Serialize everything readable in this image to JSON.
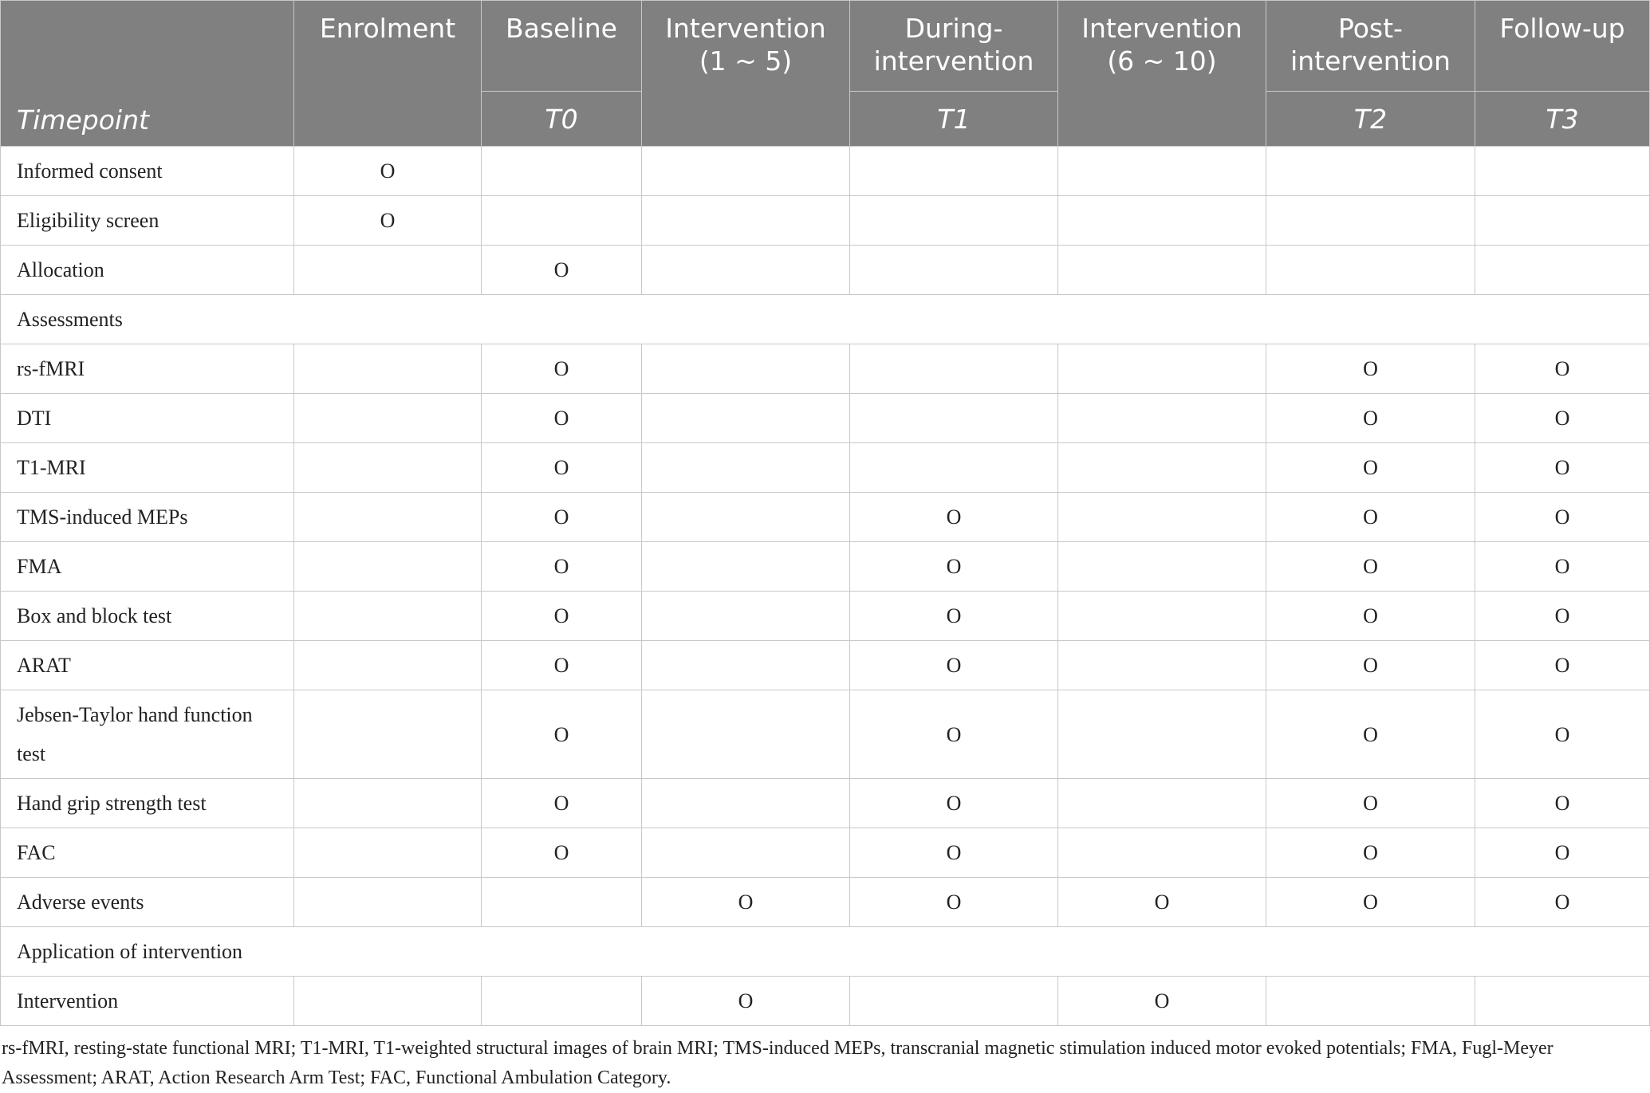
{
  "header": {
    "corner": "Timepoint",
    "columns": [
      {
        "label": "Enrolment"
      },
      {
        "label": "Baseline",
        "sub": "T0"
      },
      {
        "label": "Intervention\n(1 ~ 5)"
      },
      {
        "label": "During-\nintervention",
        "sub": "T1"
      },
      {
        "label": "Intervention\n(6 ~ 10)"
      },
      {
        "label": "Post-\nintervention",
        "sub": "T2"
      },
      {
        "label": "Follow-up",
        "sub": "T3"
      }
    ]
  },
  "rows": [
    {
      "label": "Informed consent",
      "cells": [
        "O",
        null,
        null,
        null,
        null,
        null,
        null
      ]
    },
    {
      "label": "Eligibility screen",
      "cells": [
        "O",
        null,
        null,
        null,
        null,
        null,
        null
      ]
    },
    {
      "label": "Allocation",
      "cells": [
        null,
        "O",
        null,
        null,
        null,
        null,
        null
      ]
    },
    {
      "section": "Assessments"
    },
    {
      "label": "rs-fMRI",
      "cells": [
        null,
        "O",
        null,
        null,
        null,
        "O",
        "O"
      ]
    },
    {
      "label": "DTI",
      "cells": [
        null,
        "O",
        null,
        null,
        null,
        "O",
        "O"
      ]
    },
    {
      "label": "T1-MRI",
      "cells": [
        null,
        "O",
        null,
        null,
        null,
        "O",
        "O"
      ]
    },
    {
      "label": "TMS-induced MEPs",
      "cells": [
        null,
        "O",
        null,
        "O",
        null,
        "O",
        "O"
      ]
    },
    {
      "label": "FMA",
      "cells": [
        null,
        "O",
        null,
        "O",
        null,
        "O",
        "O"
      ]
    },
    {
      "label": "Box and block test",
      "cells": [
        null,
        "O",
        null,
        "O",
        null,
        "O",
        "O"
      ]
    },
    {
      "label": "ARAT",
      "cells": [
        null,
        "O",
        null,
        "O",
        null,
        "O",
        "O"
      ]
    },
    {
      "label": "Jebsen-Taylor hand function test",
      "cells": [
        null,
        "O",
        null,
        "O",
        null,
        "O",
        "O"
      ]
    },
    {
      "label": "Hand grip strength test",
      "cells": [
        null,
        "O",
        null,
        "O",
        null,
        "O",
        "O"
      ]
    },
    {
      "label": "FAC",
      "cells": [
        null,
        "O",
        null,
        "O",
        null,
        "O",
        "O"
      ]
    },
    {
      "label": "Adverse events",
      "cells": [
        null,
        null,
        "O",
        "O",
        "O",
        "O",
        "O"
      ]
    },
    {
      "section": "Application of intervention"
    },
    {
      "label": "Intervention",
      "cells": [
        null,
        null,
        "O",
        null,
        "O",
        null,
        null
      ]
    }
  ],
  "footnote": "rs-fMRI, resting-state functional MRI; T1-MRI, T1-weighted structural images of brain MRI; TMS-induced MEPs, transcranial magnetic stimulation induced motor evoked potentials; FMA, Fugl-Meyer Assessment; ARAT, Action Research Arm Test; FAC, Functional Ambulation Category."
}
